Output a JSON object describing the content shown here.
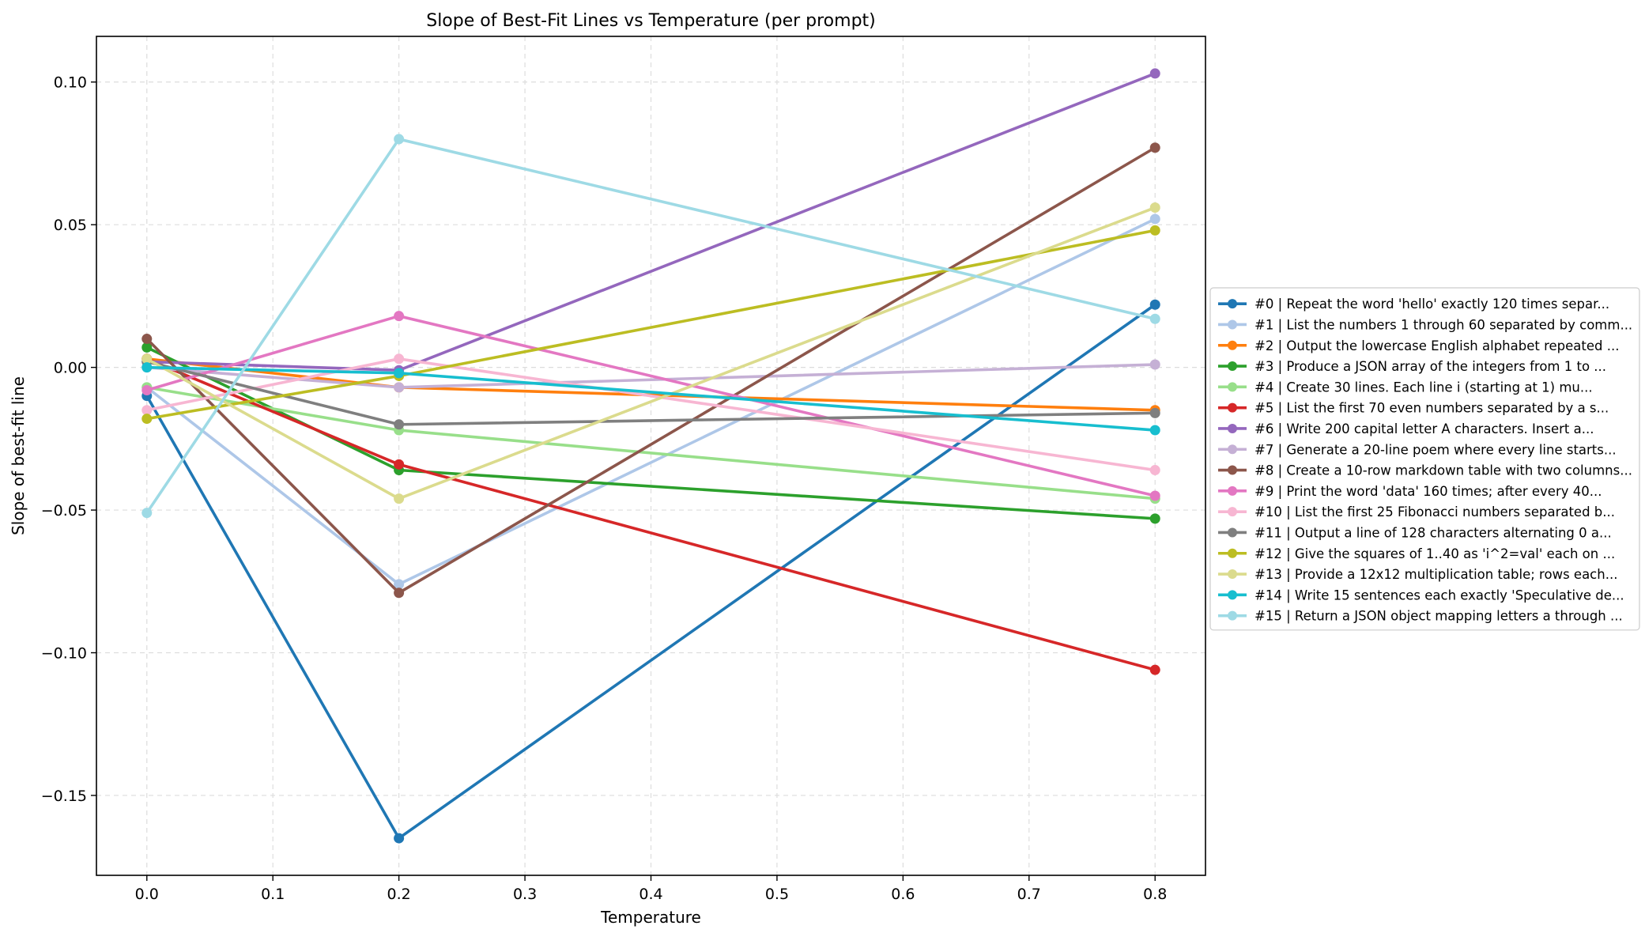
{
  "chart_data": {
    "type": "line",
    "title": "Slope of Best-Fit Lines vs Temperature (per prompt)",
    "xlabel": "Temperature",
    "ylabel": "Slope of best-fit line",
    "xlim": [
      -0.04,
      0.84
    ],
    "ylim": [
      -0.178,
      0.116
    ],
    "xticks": [
      0.0,
      0.1,
      0.2,
      0.3,
      0.4,
      0.5,
      0.6,
      0.7,
      0.8
    ],
    "xtick_labels": [
      "0.0",
      "0.1",
      "0.2",
      "0.3",
      "0.4",
      "0.5",
      "0.6",
      "0.7",
      "0.8"
    ],
    "yticks": [
      0.1,
      0.05,
      0.0,
      -0.05,
      -0.1,
      -0.15
    ],
    "ytick_labels": [
      "0.10",
      "0.05",
      "0.00",
      "−0.05",
      "−0.10",
      "−0.15"
    ],
    "grid": true,
    "legend_position": "center-right-outside",
    "x": [
      0.0,
      0.2,
      0.8
    ],
    "series": [
      {
        "name": "#0 | Repeat the word 'hello' exactly 120 times separ...",
        "color": "#1f77b4",
        "values": [
          -0.01,
          -0.165,
          0.022
        ]
      },
      {
        "name": "#1 | List the numbers 1 through 60 separated by comm...",
        "color": "#aec7e8",
        "values": [
          -0.007,
          -0.076,
          0.052
        ]
      },
      {
        "name": "#2 | Output the lowercase English alphabet repeated ...",
        "color": "#ff7f0e",
        "values": [
          0.003,
          -0.007,
          -0.015
        ]
      },
      {
        "name": "#3 | Produce a JSON array of the integers from 1 to ...",
        "color": "#2ca02c",
        "values": [
          0.007,
          -0.036,
          -0.053
        ]
      },
      {
        "name": "#4 | Create 30 lines. Each line i (starting at 1) mu...",
        "color": "#98df8a",
        "values": [
          -0.007,
          -0.022,
          -0.046
        ]
      },
      {
        "name": "#5 | List the first 70 even numbers separated by a s...",
        "color": "#d62728",
        "values": [
          0.003,
          -0.034,
          -0.106
        ]
      },
      {
        "name": "#6 | Write 200 capital letter A characters. Insert a...",
        "color": "#9467bd",
        "values": [
          0.002,
          -0.001,
          0.103
        ]
      },
      {
        "name": "#7 | Generate a 20-line poem where every line starts...",
        "color": "#c5b0d5",
        "values": [
          0.0,
          -0.007,
          0.001
        ]
      },
      {
        "name": "#8 | Create a 10-row markdown table with two columns...",
        "color": "#8c564b",
        "values": [
          0.01,
          -0.079,
          0.077
        ]
      },
      {
        "name": "#9 | Print the word 'data' 160 times; after every 40...",
        "color": "#e377c2",
        "values": [
          -0.008,
          0.018,
          -0.045
        ]
      },
      {
        "name": "#10 | List the first 25 Fibonacci numbers separated b...",
        "color": "#f7b6d2",
        "values": [
          -0.015,
          0.003,
          -0.036
        ]
      },
      {
        "name": "#11 | Output a line of 128 characters alternating 0 a...",
        "color": "#7f7f7f",
        "values": [
          0.002,
          -0.02,
          -0.016
        ]
      },
      {
        "name": "#12 | Give the squares of 1..40 as 'i^2=val' each on ...",
        "color": "#bcbd22",
        "values": [
          -0.018,
          -0.003,
          0.048
        ]
      },
      {
        "name": "#13 | Provide a 12x12 multiplication table; rows each...",
        "color": "#dbdb8d",
        "values": [
          0.003,
          -0.046,
          0.056
        ]
      },
      {
        "name": "#14 | Write 15 sentences each exactly 'Speculative de...",
        "color": "#17becf",
        "values": [
          0.0,
          -0.002,
          -0.022
        ]
      },
      {
        "name": "#15 | Return a JSON object mapping letters a through ...",
        "color": "#9edae5",
        "values": [
          -0.051,
          0.08,
          0.017
        ]
      }
    ]
  }
}
